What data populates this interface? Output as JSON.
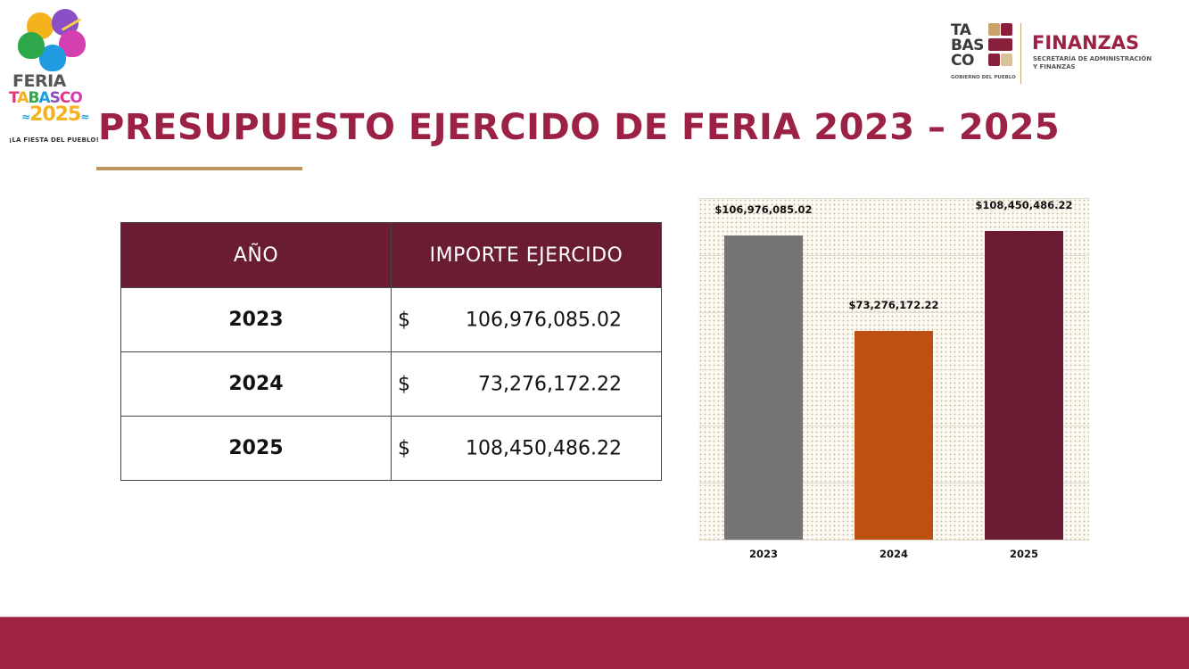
{
  "branding": {
    "feria_logo": {
      "line1": "FERIA",
      "line2_letters": [
        "T",
        "A",
        "B",
        "A",
        "S",
        "C",
        "O"
      ],
      "line3": "2025",
      "tagline": "¡LA FIESTA DEL PUEBLO!"
    },
    "gov_logo": {
      "text_lines": [
        "TA",
        "BAS",
        "CO"
      ],
      "subtitle": "GOBIERNO DEL PUEBLO"
    },
    "finanzas_logo": {
      "title": "FINANZAS",
      "subtitle_line1": "SECRETARÍA DE ADMINISTRACIÓN",
      "subtitle_line2": "Y FINANZAS"
    }
  },
  "page": {
    "title": "PRESUPUESTO EJERCIDO DE FERIA 2023 – 2025"
  },
  "table": {
    "headers": [
      "AÑO",
      "IMPORTE EJERCIDO"
    ],
    "currency_symbol": "$",
    "rows": [
      {
        "year": "2023",
        "amount": "106,976,085.02"
      },
      {
        "year": "2024",
        "amount": "73,276,172.22"
      },
      {
        "year": "2025",
        "amount": "108,450,486.22"
      }
    ]
  },
  "chart_data": {
    "type": "bar",
    "title": "",
    "xlabel": "",
    "ylabel": "",
    "categories": [
      "2023",
      "2024",
      "2025"
    ],
    "values": [
      106976085.02,
      73276172.22,
      108450486.22
    ],
    "data_labels": [
      "$106,976,085.02",
      "$73,276,172.22",
      "$108,450,486.22"
    ],
    "colors": [
      "#757575",
      "#bf5014",
      "#691c32"
    ],
    "ylim": [
      0,
      120000000
    ],
    "y_gridlines": [
      0,
      20000000,
      40000000,
      60000000,
      80000000,
      100000000,
      120000000
    ],
    "grid": true,
    "y_axis_visible": false,
    "legend": "none"
  },
  "colors": {
    "brand_primary": "#9b2145",
    "table_header": "#691c32",
    "accent_gold": "#bc955c",
    "footer": "#9f2241"
  }
}
